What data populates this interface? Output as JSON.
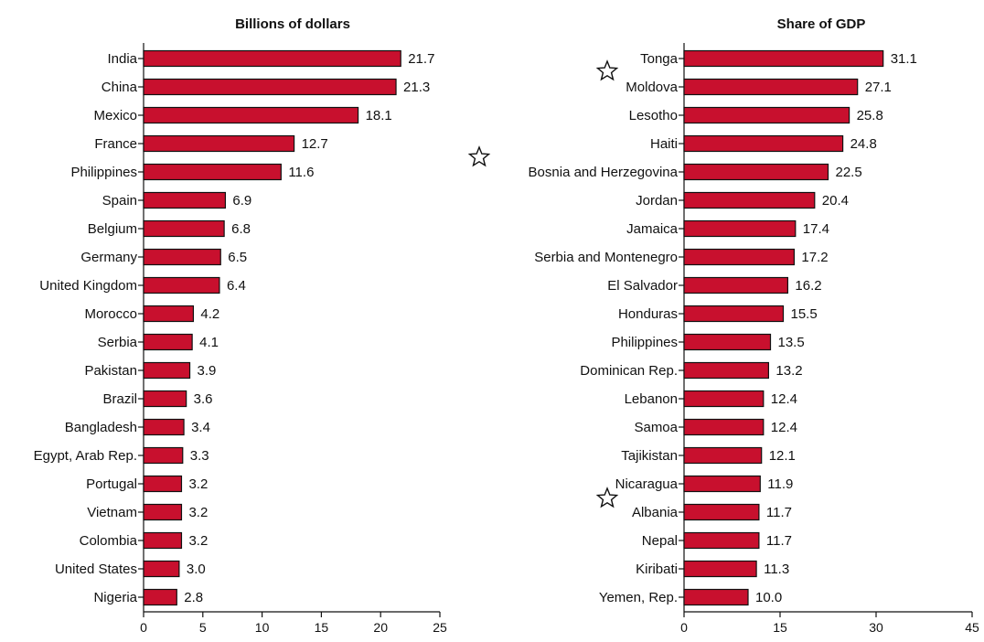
{
  "colors": {
    "bar_fill": "#c8102e",
    "bar_stroke": "#111111",
    "text": "#111111",
    "background": "#ffffff"
  },
  "chart_data": [
    {
      "type": "bar",
      "orientation": "horizontal",
      "title": "Billions of dollars",
      "categories": [
        "India",
        "China",
        "Mexico",
        "France",
        "Philippines",
        "Spain",
        "Belgium",
        "Germany",
        "United Kingdom",
        "Morocco",
        "Serbia",
        "Pakistan",
        "Brazil",
        "Bangladesh",
        "Egypt, Arab Rep.",
        "Portugal",
        "Vietnam",
        "Colombia",
        "United States",
        "Nigeria"
      ],
      "values": [
        21.7,
        21.3,
        18.1,
        12.7,
        11.6,
        6.9,
        6.8,
        6.5,
        6.4,
        4.2,
        4.1,
        3.9,
        3.6,
        3.4,
        3.3,
        3.2,
        3.2,
        3.2,
        3.0,
        2.8
      ],
      "value_labels": [
        "21.7",
        "21.3",
        "18.1",
        "12.7",
        "11.6",
        "6.9",
        "6.8",
        "6.5",
        "6.4",
        "4.2",
        "4.1",
        "3.9",
        "3.6",
        "3.4",
        "3.3",
        "3.2",
        "3.2",
        "3.2",
        "3.0",
        "2.8"
      ],
      "xlim": [
        0,
        25
      ],
      "xticks": [
        0,
        5,
        10,
        15,
        20,
        25
      ],
      "grid": false,
      "legend": "none",
      "starred_categories": []
    },
    {
      "type": "bar",
      "orientation": "horizontal",
      "title": "Share of GDP",
      "categories": [
        "Tonga",
        "Moldova",
        "Lesotho",
        "Haiti",
        "Bosnia and Herzegovina",
        "Jordan",
        "Jamaica",
        "Serbia and Montenegro",
        "El Salvador",
        "Honduras",
        "Philippines",
        "Dominican Rep.",
        "Lebanon",
        "Samoa",
        "Tajikistan",
        "Nicaragua",
        "Albania",
        "Nepal",
        "Kiribati",
        "Yemen, Rep."
      ],
      "values": [
        31.1,
        27.1,
        25.8,
        24.8,
        22.5,
        20.4,
        17.4,
        17.2,
        16.2,
        15.5,
        13.5,
        13.2,
        12.4,
        12.4,
        12.1,
        11.9,
        11.7,
        11.7,
        11.3,
        10.0
      ],
      "value_labels": [
        "31.1",
        "27.1",
        "25.8",
        "24.8",
        "22.5",
        "20.4",
        "17.4",
        "17.2",
        "16.2",
        "15.5",
        "13.5",
        "13.2",
        "12.4",
        "12.4",
        "12.1",
        "11.9",
        "11.7",
        "11.7",
        "11.3",
        "10.0"
      ],
      "xlim": [
        0,
        45
      ],
      "xticks": [
        0,
        15,
        30,
        45
      ],
      "grid": false,
      "legend": "none",
      "starred_categories": [
        "Moldova",
        "Bosnia and Herzegovina",
        "Albania"
      ]
    }
  ]
}
